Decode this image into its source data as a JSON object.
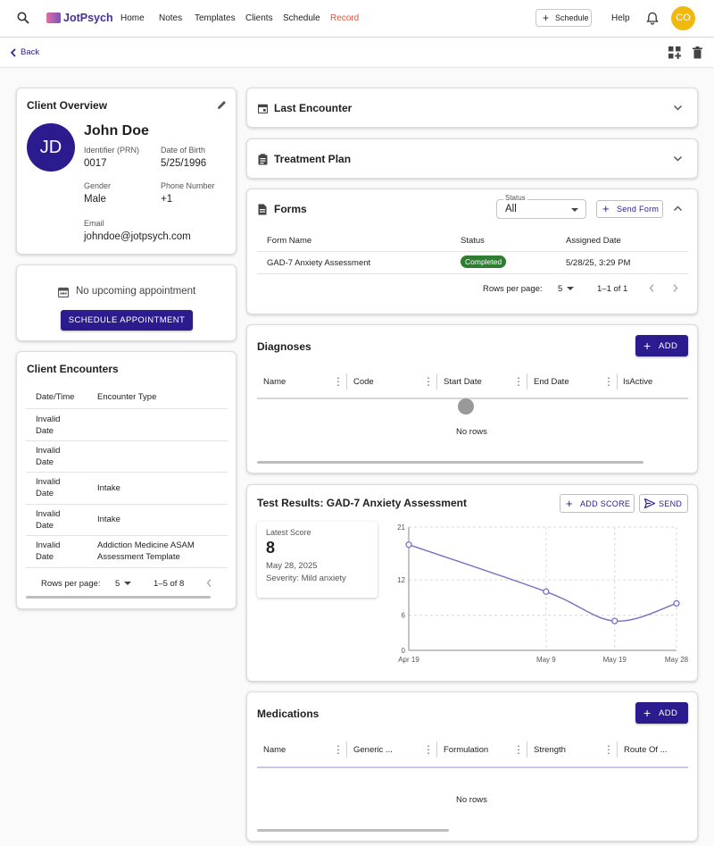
{
  "nav": {
    "brand": "JotPsych",
    "links": [
      "Home",
      "Notes",
      "Templates",
      "Clients",
      "Schedule",
      "Record"
    ],
    "schedule_button": "Schedule",
    "help": "Help",
    "avatar": "CO",
    "accent": "#e0533a"
  },
  "subbar": {
    "back": "Back"
  },
  "client": {
    "title": "Client Overview",
    "initials": "JD",
    "name": "John Doe",
    "identifier_label": "Identifier (PRN)",
    "identifier": "0017",
    "dob_label": "Date of Birth",
    "dob": "5/25/1996",
    "gender_label": "Gender",
    "gender": "Male",
    "phone_label": "Phone Number",
    "phone": "+1",
    "email_label": "Email",
    "email": "johndoe@jotpsych.com"
  },
  "appointment": {
    "empty": "No upcoming appointment",
    "button": "SCHEDULE APPOINTMENT"
  },
  "encounters": {
    "title": "Client Encounters",
    "headers": [
      "Date/Time",
      "Encounter Type"
    ],
    "rows": [
      {
        "date": "Invalid Date",
        "type": ""
      },
      {
        "date": "Invalid Date",
        "type": ""
      },
      {
        "date": "Invalid Date",
        "type": "Intake"
      },
      {
        "date": "Invalid Date",
        "type": "Intake"
      },
      {
        "date": "Invalid Date",
        "type": "Addiction Medicine ASAM Assessment Template"
      }
    ],
    "rows_per_page_label": "Rows per page:",
    "rows_per_page": "5",
    "range": "1–5 of 8"
  },
  "last_encounter": {
    "title": "Last Encounter"
  },
  "treatment_plan": {
    "title": "Treatment Plan"
  },
  "forms": {
    "title": "Forms",
    "status_label": "Status",
    "status_value": "All",
    "send_button": "Send Form",
    "headers": [
      "Form Name",
      "Status",
      "Assigned Date"
    ],
    "rows": [
      {
        "name": "GAD-7 Anxiety Assessment",
        "status": "Completed",
        "date": "5/28/25, 3:29 PM"
      }
    ],
    "rows_per_page_label": "Rows per page:",
    "rows_per_page": "5",
    "range": "1–1 of 1"
  },
  "diagnoses": {
    "title": "Diagnoses",
    "add": "ADD",
    "columns": [
      "Name",
      "Code",
      "Start Date",
      "End Date",
      "IsActive"
    ],
    "empty": "No rows"
  },
  "test_results": {
    "title": "Test Results: GAD-7 Anxiety Assessment",
    "add_score": "ADD SCORE",
    "send": "SEND",
    "latest_label": "Latest Score",
    "latest_score": "8",
    "latest_date": "May 28, 2025",
    "severity": "Severity: Mild anxiety"
  },
  "chart_data": {
    "type": "line",
    "x": [
      "Apr 19",
      "May 9",
      "May 19",
      "May 28"
    ],
    "x_days": [
      0,
      20,
      30,
      39
    ],
    "y": [
      18,
      10,
      5,
      8
    ],
    "yticks": [
      0,
      6,
      12,
      21
    ],
    "ylim": [
      0,
      21
    ],
    "grid": true,
    "color": "#7b6fc4"
  },
  "medications": {
    "title": "Medications",
    "add": "ADD",
    "columns": [
      "Name",
      "Generic ...",
      "Formulation",
      "Strength",
      "Route Of ..."
    ],
    "empty": "No rows"
  }
}
